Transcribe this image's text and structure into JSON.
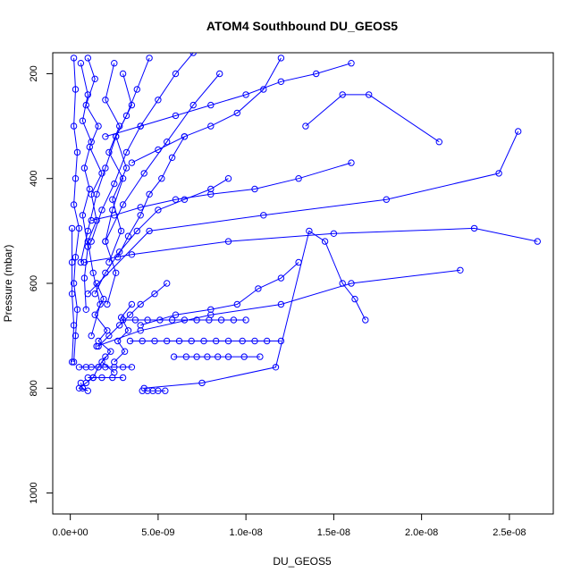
{
  "chart_data": {
    "type": "line",
    "title": "ATOM4 Southbound DU_GEOS5",
    "xlabel": "DU_GEOS5",
    "ylabel": "Pressure (mbar)",
    "xlim": [
      -1e-09,
      2.75e-08
    ],
    "ylim": [
      1040,
      160
    ],
    "y_reversed": true,
    "grid": false,
    "legend": "none",
    "x_ticks": [
      {
        "value": 0,
        "label": "0.0e+00"
      },
      {
        "value": 5e-09,
        "label": "5.0e-09"
      },
      {
        "value": 1e-08,
        "label": "1.0e-08"
      },
      {
        "value": 1.5e-08,
        "label": "1.5e-08"
      },
      {
        "value": 2e-08,
        "label": "2.0e-08"
      },
      {
        "value": 2.5e-08,
        "label": "2.5e-08"
      }
    ],
    "y_ticks": [
      {
        "value": 200,
        "label": "200"
      },
      {
        "value": 400,
        "label": "400"
      },
      {
        "value": 600,
        "label": "600"
      },
      {
        "value": 800,
        "label": "800"
      },
      {
        "value": 1000,
        "label": "1000"
      }
    ],
    "color": "#0000ff",
    "marker": "open-circle",
    "series": [
      {
        "x": [
          2.1e-08,
          1.7e-08,
          1.55e-08,
          1.34e-08
        ],
        "y": [
          330,
          240,
          240,
          300
        ]
      },
      {
        "x": [
          2.55e-08,
          2.44e-08,
          1.8e-08,
          1.1e-08,
          4.5e-09,
          1e-09
        ],
        "y": [
          310,
          390,
          440,
          470,
          500,
          620
        ]
      },
      {
        "x": [
          2.66e-08,
          2.3e-08,
          1.5e-08,
          9e-09,
          3.5e-09,
          8e-10
        ],
        "y": [
          520,
          495,
          505,
          520,
          545,
          560
        ]
      },
      {
        "x": [
          2.22e-08,
          1.6e-08,
          1.2e-08,
          8e-09,
          4e-09,
          1.5e-09
        ],
        "y": [
          575,
          600,
          640,
          660,
          690,
          720
        ]
      },
      {
        "x": [
          1.68e-08,
          1.62e-08,
          1.55e-08,
          1.45e-08,
          1.36e-08,
          1.17e-08,
          7.5e-09,
          4.2e-09
        ],
        "y": [
          670,
          630,
          600,
          520,
          500,
          760,
          790,
          800
        ]
      },
      {
        "x": [
          1.2e-08,
          1.12e-08,
          1.05e-08,
          9.8e-09,
          9e-09,
          8.3e-09,
          7.6e-09,
          6.9e-09,
          6.2e-09,
          5.5e-09,
          4.8e-09,
          4.1e-09,
          3.4e-09
        ],
        "y": [
          710,
          710,
          710,
          710,
          710,
          710,
          710,
          710,
          710,
          710,
          710,
          710,
          710
        ]
      },
      {
        "x": [
          1e-08,
          9.3e-09,
          8.6e-09,
          7.9e-09,
          7.2e-09,
          6.5e-09,
          5.8e-09,
          5.1e-09,
          4.4e-09,
          3.7e-09,
          3e-09
        ],
        "y": [
          670,
          670,
          670,
          670,
          670,
          670,
          670,
          670,
          670,
          670,
          670
        ]
      },
      {
        "x": [
          1.08e-08,
          9.9e-09,
          9e-09,
          8.4e-09,
          7.8e-09,
          7.2e-09,
          6.6e-09,
          5.9e-09
        ],
        "y": [
          740,
          740,
          740,
          740,
          740,
          740,
          740,
          740
        ]
      },
      {
        "x": [
          5.4e-09,
          5e-09,
          4.7e-09,
          4.4e-09,
          4.1e-09
        ],
        "y": [
          805,
          805,
          805,
          805,
          805
        ]
      },
      {
        "x": [
          1.6e-08,
          1.3e-08,
          1.05e-08,
          8e-09,
          6e-09,
          4e-09,
          2.5e-09,
          1.2e-09
        ],
        "y": [
          370,
          400,
          420,
          430,
          440,
          455,
          470,
          480
        ]
      },
      {
        "x": [
          1.2e-08,
          1.1e-08,
          9.5e-09,
          8e-09,
          6.5e-09,
          5e-09,
          3.5e-09
        ],
        "y": [
          170,
          230,
          275,
          300,
          320,
          345,
          370
        ]
      },
      {
        "x": [
          1.6e-08,
          1.4e-08,
          1.2e-08,
          1e-08,
          8e-09,
          6e-09,
          4e-09,
          2e-09
        ],
        "y": [
          180,
          200,
          215,
          240,
          260,
          280,
          300,
          320
        ]
      },
      {
        "x": [
          1.3e-08,
          1.2e-08,
          1.07e-08,
          9.5e-09,
          8e-09,
          6e-09,
          4e-09
        ],
        "y": [
          560,
          590,
          610,
          640,
          650,
          660,
          680
        ]
      },
      {
        "x": [
          2e-09,
          1.6e-09,
          1.3e-09,
          9e-10,
          5e-10,
          1e-09,
          7e-10,
          6e-10
        ],
        "y": [
          740,
          760,
          780,
          790,
          800,
          805,
          800,
          790
        ]
      },
      {
        "x": [
          3.5e-09,
          3e-09,
          2.5e-09,
          2e-09,
          1.6e-09,
          1.2e-09,
          9e-10,
          5e-10
        ],
        "y": [
          760,
          760,
          760,
          760,
          760,
          760,
          760,
          760
        ]
      },
      {
        "x": [
          3e-09,
          2.4e-09,
          1.8e-09,
          1.3e-09,
          1e-09
        ],
        "y": [
          780,
          780,
          780,
          780,
          780
        ]
      },
      {
        "x": [
          2e-10,
          3e-10,
          2e-10,
          4e-10,
          3e-10,
          2e-10,
          5e-10,
          3e-10,
          2e-10,
          4e-10,
          3e-10,
          2e-10
        ],
        "y": [
          170,
          230,
          300,
          350,
          400,
          450,
          495,
          550,
          600,
          650,
          700,
          750
        ]
      },
      {
        "x": [
          1e-09,
          1.4e-09,
          9e-10,
          1.6e-09,
          1.1e-09,
          1.8e-09,
          1.2e-09,
          1.5e-09,
          1e-09,
          1.3e-09,
          1.7e-09,
          1.2e-09
        ],
        "y": [
          170,
          210,
          260,
          300,
          340,
          390,
          430,
          480,
          520,
          580,
          640,
          700
        ]
      },
      {
        "x": [
          6e-10,
          1e-09,
          7e-10,
          1.2e-09,
          8e-10,
          1.1e-09,
          7e-10,
          1e-09,
          8e-10,
          9e-10
        ],
        "y": [
          180,
          240,
          290,
          330,
          380,
          420,
          470,
          530,
          590,
          650
        ]
      },
      {
        "x": [
          2.5e-09,
          2e-09,
          2.8e-09,
          2.2e-09,
          3e-09,
          2.4e-09,
          2e-09,
          2.6e-09,
          2.1e-09
        ],
        "y": [
          180,
          250,
          300,
          350,
          400,
          460,
          520,
          580,
          640
        ]
      },
      {
        "x": [
          4.5e-09,
          3.8e-09,
          3.2e-09,
          2.6e-09,
          2e-09,
          1.5e-09,
          1e-09,
          6e-10
        ],
        "y": [
          170,
          230,
          280,
          320,
          380,
          430,
          500,
          560
        ]
      },
      {
        "x": [
          7e-09,
          6e-09,
          5e-09,
          4e-09,
          3.2e-09,
          2.5e-09,
          1.8e-09,
          1.2e-09
        ],
        "y": [
          160,
          200,
          250,
          300,
          350,
          410,
          460,
          520
        ]
      },
      {
        "x": [
          9e-09,
          8e-09,
          6.5e-09,
          5e-09,
          3.8e-09,
          2.8e-09,
          2e-09,
          1.4e-09
        ],
        "y": [
          400,
          420,
          440,
          460,
          500,
          540,
          580,
          620
        ]
      },
      {
        "x": [
          5.5e-09,
          4.8e-09,
          4e-09,
          3.4e-09,
          2.8e-09,
          2.2e-09,
          1.6e-09
        ],
        "y": [
          600,
          620,
          640,
          660,
          680,
          700,
          720
        ]
      },
      {
        "x": [
          3e-09,
          3.5e-09,
          2.6e-09,
          3.2e-09,
          2.4e-09,
          2.9e-09,
          2.2e-09
        ],
        "y": [
          200,
          260,
          320,
          380,
          440,
          500,
          560
        ]
      },
      {
        "x": [
          6.5e-09,
          5.8e-09,
          5.2e-09,
          4.5e-09,
          4e-09,
          3.3e-09,
          2.7e-09
        ],
        "y": [
          320,
          360,
          400,
          430,
          470,
          510,
          550
        ]
      },
      {
        "x": [
          8.5e-09,
          7e-09,
          5.5e-09,
          4.2e-09,
          3e-09,
          2e-09
        ],
        "y": [
          200,
          260,
          330,
          390,
          450,
          520
        ]
      },
      {
        "x": [
          1.5e-09,
          1.9e-09,
          1.4e-09,
          2.1e-09,
          1.6e-09,
          2.3e-09,
          1.8e-09,
          2.5e-09
        ],
        "y": [
          600,
          630,
          660,
          690,
          710,
          730,
          750,
          770
        ]
      },
      {
        "x": [
          3.5e-09,
          2.9e-09,
          3.3e-09,
          2.7e-09,
          3.1e-09,
          2.5e-09
        ],
        "y": [
          640,
          665,
          690,
          710,
          730,
          750
        ]
      },
      {
        "x": [
          1e-10,
          1e-10,
          1e-10,
          2e-10,
          1e-10
        ],
        "y": [
          495,
          560,
          620,
          680,
          750
        ]
      }
    ]
  }
}
